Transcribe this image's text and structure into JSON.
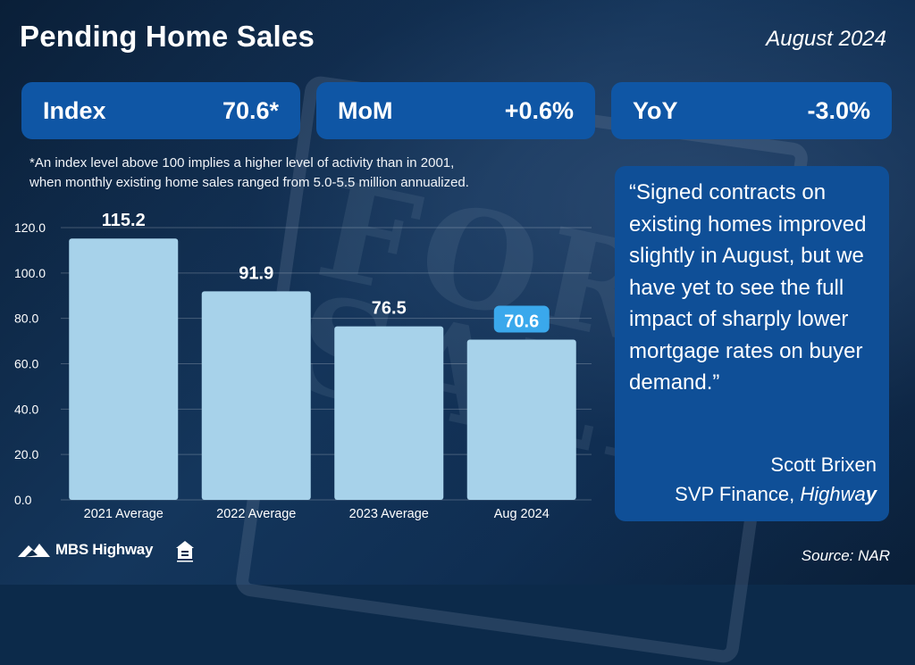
{
  "header": {
    "title": "Pending Home Sales",
    "period": "August 2024"
  },
  "stats": [
    {
      "label": "Index",
      "value": "70.6*"
    },
    {
      "label": "MoM",
      "value": "+0.6%"
    },
    {
      "label": "YoY",
      "value": "-3.0%"
    }
  ],
  "note": {
    "line1": "*An index level above 100 implies a higher level of activity than in 2001,",
    "line2": "when monthly existing home sales ranged from 5.0-5.5 million annualized."
  },
  "quote": {
    "text": "“Signed contracts on existing homes improved slightly in August, but we have yet to see the full impact of sharply lower mortgage rates on buyer demand.”",
    "author": "Scott Brixen",
    "role_prefix": "SVP Finance, ",
    "company_main": "Highwa",
    "company_end": "y"
  },
  "footer": {
    "logo": "MBS Highway",
    "source": "Source: NAR"
  },
  "background_text": "FOR SALE",
  "colors": {
    "bar": "#a7d2ea",
    "highlight_label": "#3aa8ec",
    "stat_box": "#0f56a5",
    "quote_box": "#0f4f97"
  },
  "chart_data": {
    "type": "bar",
    "categories": [
      "2021 Average",
      "2022 Average",
      "2023 Average",
      "Aug 2024"
    ],
    "values": [
      115.2,
      91.9,
      76.5,
      70.6
    ],
    "value_labels": [
      "115.2",
      "91.9",
      "76.5",
      "70.6"
    ],
    "highlight_index": 3,
    "ylim": [
      0,
      120
    ],
    "yticks": [
      "0.0",
      "20.0",
      "40.0",
      "60.0",
      "80.0",
      "100.0",
      "120.0"
    ],
    "grid": true,
    "title": "",
    "xlabel": "",
    "ylabel": ""
  }
}
